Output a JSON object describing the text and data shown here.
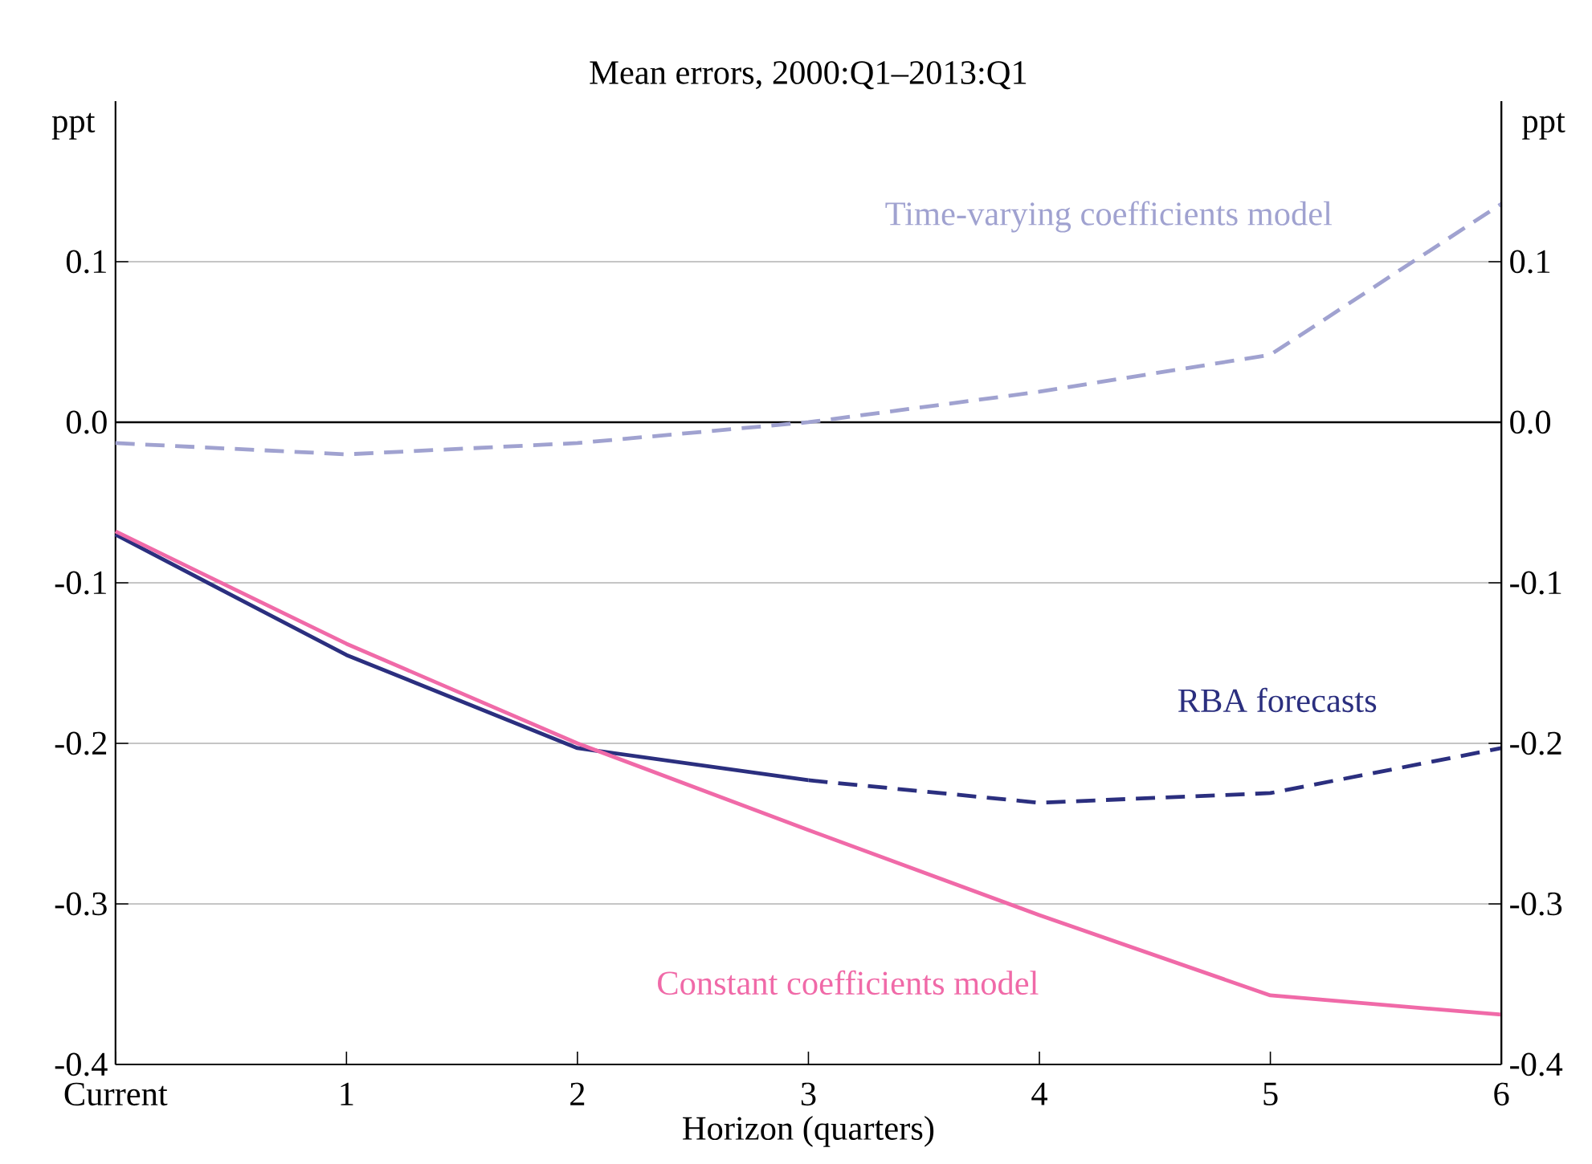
{
  "chart_data": {
    "type": "line",
    "title": "Mean errors, 2000:Q1–2013:Q1",
    "xlabel": "Horizon (quarters)",
    "ylabel": "ppt",
    "y2label": "ppt",
    "categories": [
      "Current",
      "1",
      "2",
      "3",
      "4",
      "5",
      "6"
    ],
    "series": [
      {
        "name": "Time-varying coefficients model",
        "color": "#a0a2d0",
        "line_style": "dashed",
        "values": [
          -0.013,
          -0.02,
          -0.013,
          0.0,
          0.019,
          0.042,
          0.136
        ]
      },
      {
        "name": "RBA forecasts",
        "color": "#2b2f7f",
        "line_style": "solid",
        "values": [
          -0.07,
          -0.145,
          -0.203,
          -0.223,
          null,
          null,
          null
        ]
      },
      {
        "color": "#2b2f7f",
        "line_style": "dashed",
        "values": [
          null,
          null,
          null,
          -0.223,
          -0.237,
          -0.231,
          -0.203
        ]
      },
      {
        "name": "Constant coefficients model",
        "color": "#f06aa8",
        "line_style": "solid",
        "values": [
          -0.068,
          -0.138,
          -0.2,
          -0.254,
          -0.307,
          -0.357,
          -0.369
        ]
      }
    ],
    "ylim": [
      -0.4,
      0.2
    ],
    "yticks": [
      -0.4,
      -0.3,
      -0.2,
      -0.1,
      {
        "value": 0,
        "label": "0.0"
      },
      0.1
    ],
    "y2lim": [
      -0.4,
      0.2
    ],
    "y2ticks": [
      -0.4,
      -0.3,
      -0.2,
      -0.1,
      {
        "value": 0,
        "label": "0.0"
      },
      0.1
    ],
    "ref_lines": [
      {
        "axis": "y",
        "value": 0,
        "color": "#000000"
      }
    ],
    "grid": "y"
  }
}
